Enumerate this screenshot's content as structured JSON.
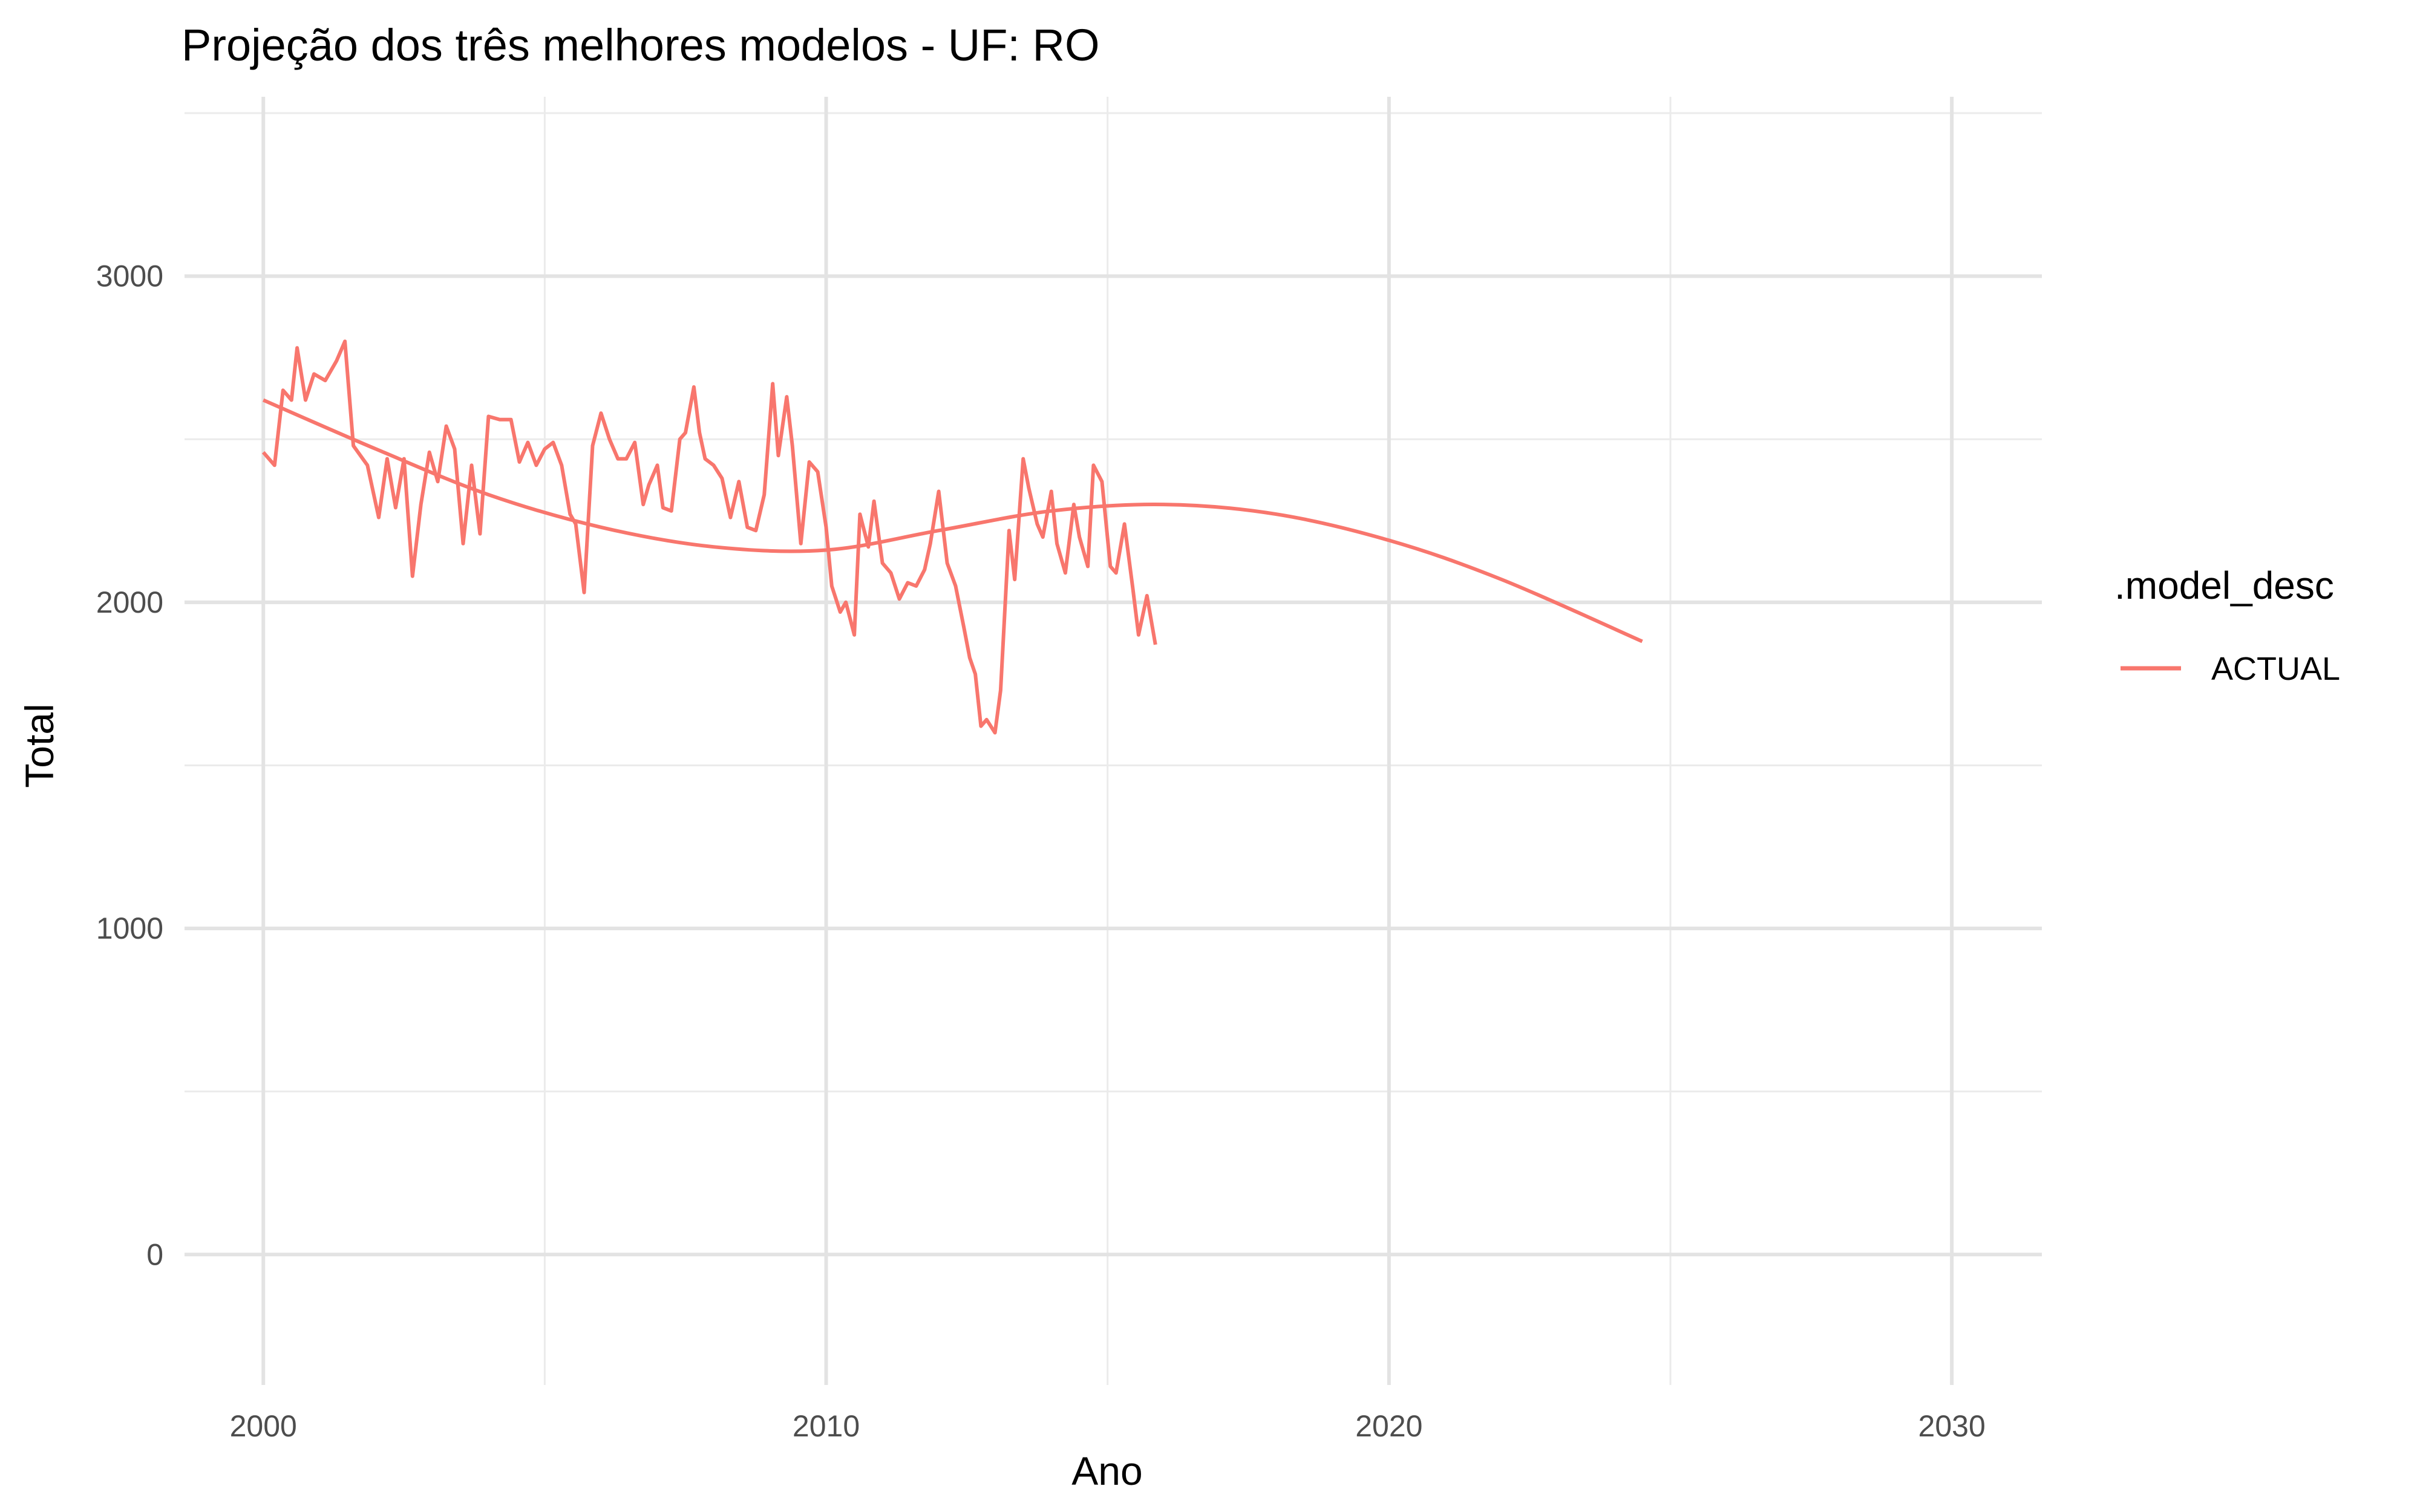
{
  "chart_data": {
    "type": "line",
    "title": "Projeção dos três melhores modelos - UF: RO",
    "xlabel": "Ano",
    "ylabel": "Total",
    "xlim": [
      1998.6,
      2031.6
    ],
    "ylim": [
      -400,
      3550
    ],
    "x_ticks": [
      2000,
      2010,
      2020,
      2030
    ],
    "y_ticks": [
      0,
      1000,
      2000,
      3000
    ],
    "grid": true,
    "legend": {
      "title": ".model_desc",
      "position": "right"
    },
    "series": [
      {
        "name": "ACTUAL",
        "color": "#F8766D",
        "smoothed_trend": [
          [
            2000,
            2620
          ],
          [
            2002,
            2470
          ],
          [
            2004,
            2330
          ],
          [
            2006,
            2230
          ],
          [
            2008,
            2170
          ],
          [
            2010,
            2160
          ],
          [
            2012,
            2220
          ],
          [
            2014,
            2280
          ],
          [
            2016,
            2300
          ],
          [
            2018,
            2270
          ],
          [
            2020,
            2190
          ],
          [
            2022,
            2070
          ],
          [
            2024.5,
            1880
          ]
        ],
        "points": [
          [
            2000,
            2460
          ],
          [
            2000.2,
            2420
          ],
          [
            2000.35,
            2650
          ],
          [
            2000.5,
            2620
          ],
          [
            2000.6,
            2780
          ],
          [
            2000.75,
            2620
          ],
          [
            2000.9,
            2700
          ],
          [
            2001.1,
            2680
          ],
          [
            2001.3,
            2740
          ],
          [
            2001.45,
            2800
          ],
          [
            2001.6,
            2480
          ],
          [
            2001.85,
            2420
          ],
          [
            2002.05,
            2260
          ],
          [
            2002.2,
            2440
          ],
          [
            2002.35,
            2290
          ],
          [
            2002.5,
            2440
          ],
          [
            2002.65,
            2080
          ],
          [
            2002.8,
            2300
          ],
          [
            2002.95,
            2460
          ],
          [
            2003.1,
            2370
          ],
          [
            2003.25,
            2540
          ],
          [
            2003.4,
            2470
          ],
          [
            2003.55,
            2180
          ],
          [
            2003.7,
            2420
          ],
          [
            2003.85,
            2210
          ],
          [
            2004,
            2570
          ],
          [
            2004.2,
            2560
          ],
          [
            2004.4,
            2560
          ],
          [
            2004.55,
            2430
          ],
          [
            2004.7,
            2490
          ],
          [
            2004.85,
            2420
          ],
          [
            2005,
            2470
          ],
          [
            2005.15,
            2490
          ],
          [
            2005.3,
            2420
          ],
          [
            2005.45,
            2270
          ],
          [
            2005.55,
            2240
          ],
          [
            2005.7,
            2030
          ],
          [
            2005.85,
            2480
          ],
          [
            2006,
            2580
          ],
          [
            2006.15,
            2500
          ],
          [
            2006.3,
            2440
          ],
          [
            2006.45,
            2440
          ],
          [
            2006.6,
            2490
          ],
          [
            2006.75,
            2300
          ],
          [
            2006.85,
            2360
          ],
          [
            2007,
            2420
          ],
          [
            2007.1,
            2290
          ],
          [
            2007.25,
            2280
          ],
          [
            2007.4,
            2500
          ],
          [
            2007.5,
            2520
          ],
          [
            2007.65,
            2660
          ],
          [
            2007.75,
            2520
          ],
          [
            2007.85,
            2440
          ],
          [
            2008,
            2420
          ],
          [
            2008.15,
            2380
          ],
          [
            2008.3,
            2260
          ],
          [
            2008.45,
            2370
          ],
          [
            2008.6,
            2230
          ],
          [
            2008.75,
            2220
          ],
          [
            2008.9,
            2330
          ],
          [
            2009.05,
            2670
          ],
          [
            2009.15,
            2450
          ],
          [
            2009.3,
            2630
          ],
          [
            2009.4,
            2480
          ],
          [
            2009.55,
            2180
          ],
          [
            2009.7,
            2430
          ],
          [
            2009.85,
            2400
          ],
          [
            2010,
            2230
          ],
          [
            2010.1,
            2050
          ],
          [
            2010.25,
            1970
          ],
          [
            2010.35,
            2000
          ],
          [
            2010.5,
            1900
          ],
          [
            2010.6,
            2270
          ],
          [
            2010.75,
            2170
          ],
          [
            2010.85,
            2310
          ],
          [
            2011,
            2120
          ],
          [
            2011.15,
            2090
          ],
          [
            2011.3,
            2010
          ],
          [
            2011.45,
            2060
          ],
          [
            2011.6,
            2050
          ],
          [
            2011.75,
            2100
          ],
          [
            2011.85,
            2180
          ],
          [
            2012,
            2340
          ],
          [
            2012.15,
            2120
          ],
          [
            2012.3,
            2050
          ],
          [
            2012.45,
            1920
          ],
          [
            2012.55,
            1830
          ],
          [
            2012.65,
            1780
          ],
          [
            2012.75,
            1620
          ],
          [
            2012.85,
            1640
          ],
          [
            2013,
            1600
          ],
          [
            2013.1,
            1730
          ],
          [
            2013.25,
            2220
          ],
          [
            2013.35,
            2070
          ],
          [
            2013.5,
            2440
          ],
          [
            2013.6,
            2350
          ],
          [
            2013.75,
            2240
          ],
          [
            2013.85,
            2200
          ],
          [
            2014,
            2340
          ],
          [
            2014.1,
            2180
          ],
          [
            2014.25,
            2090
          ],
          [
            2014.4,
            2300
          ],
          [
            2014.5,
            2200
          ],
          [
            2014.65,
            2110
          ],
          [
            2014.75,
            2420
          ],
          [
            2014.9,
            2370
          ],
          [
            2015.05,
            2110
          ],
          [
            2015.15,
            2090
          ],
          [
            2015.3,
            2240
          ],
          [
            2015.45,
            2040
          ],
          [
            2015.55,
            1900
          ],
          [
            2015.7,
            2020
          ],
          [
            2015.85,
            1870
          ]
        ],
        "note_points": "values read approximately from plotted line"
      }
    ]
  }
}
